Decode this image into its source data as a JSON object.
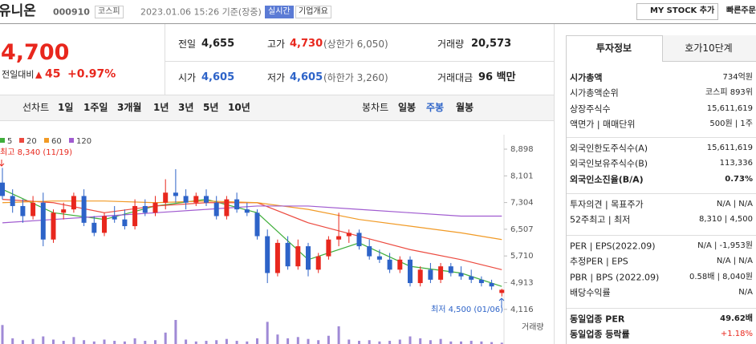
{
  "header": {
    "name": "유니온",
    "code": "000910",
    "market": "코스피",
    "datetime": "2023.01.06 15:26 기준(장중)",
    "realtime": "실시간",
    "overview": "기업개요",
    "mystock": "MY STOCK 추가",
    "quick_order": "빠른주문"
  },
  "price": {
    "current": "4,700",
    "change_label": "전일대비",
    "change": "45",
    "rate": "+0.97%"
  },
  "stats": {
    "prev_label": "전일",
    "prev": "4,655",
    "high_label": "고가",
    "high": "4,730",
    "upper_limit": "(상한가 6,050)",
    "volume_label": "거래량",
    "volume": "20,573",
    "open_label": "시가",
    "open": "4,605",
    "low_label": "저가",
    "low": "4,605",
    "lower_limit": "(하한가 3,260)",
    "amount_label": "거래대금",
    "amount": "96 백만"
  },
  "tabs": {
    "line_chart": "선차트",
    "line_periods": [
      "1일",
      "1주일",
      "3개월",
      "1년",
      "3년",
      "5년",
      "10년"
    ],
    "candle_chart": "봉차트",
    "candle_periods": [
      "일봉",
      "주봉",
      "월봉"
    ],
    "candle_selected": 1
  },
  "chart": {
    "type": "candlestick",
    "up_color": "#e8271d",
    "down_color": "#2d63c8",
    "ylim": [
      3900,
      9150
    ],
    "yticks": [
      {
        "value": 8898,
        "label": "8,898"
      },
      {
        "value": 8101,
        "label": "8,101"
      },
      {
        "value": 7304,
        "label": "7,304"
      },
      {
        "value": 6507,
        "label": "6,507"
      },
      {
        "value": 5710,
        "label": "5,710"
      },
      {
        "value": 4913,
        "label": "4,913"
      },
      {
        "value": 4116,
        "label": "4,116"
      }
    ],
    "high_note": "최고 8,340 (11/19)",
    "low_note": "최저 4,500 (01/06)",
    "volume_label": "거래량",
    "volume_color": "#a08ad6",
    "candles": [
      [
        7900,
        8340,
        7400,
        7500
      ],
      [
        7500,
        7700,
        7000,
        7200
      ],
      [
        7200,
        7400,
        6700,
        6900
      ],
      [
        6900,
        7500,
        6800,
        7300
      ],
      [
        7300,
        7600,
        6000,
        6200
      ],
      [
        6200,
        7100,
        6100,
        7000
      ],
      [
        7000,
        7300,
        6800,
        7100
      ],
      [
        7100,
        7600,
        7000,
        7500
      ],
      [
        7500,
        7700,
        6600,
        6700
      ],
      [
        6700,
        6900,
        6300,
        6400
      ],
      [
        6400,
        7000,
        6300,
        6900
      ],
      [
        6900,
        7200,
        6700,
        6800
      ],
      [
        6800,
        7100,
        6500,
        6600
      ],
      [
        6600,
        7400,
        6500,
        7200
      ],
      [
        7200,
        7400,
        6900,
        7000
      ],
      [
        7000,
        7500,
        6900,
        7300
      ],
      [
        7300,
        8000,
        7100,
        7600
      ],
      [
        7600,
        8300,
        7300,
        7500
      ],
      [
        7500,
        7700,
        7100,
        7300
      ],
      [
        7300,
        7600,
        7200,
        7500
      ],
      [
        7500,
        7700,
        7200,
        7300
      ],
      [
        7300,
        7500,
        6800,
        6900
      ],
      [
        6900,
        7500,
        6800,
        7400
      ],
      [
        7400,
        7600,
        7000,
        7100
      ],
      [
        7100,
        7300,
        6900,
        7000
      ],
      [
        7000,
        7100,
        6200,
        6300
      ],
      [
        6300,
        6500,
        4900,
        5200
      ],
      [
        5200,
        6200,
        5100,
        6100
      ],
      [
        6100,
        6300,
        5300,
        5400
      ],
      [
        5400,
        6200,
        5300,
        6000
      ],
      [
        6000,
        6100,
        5100,
        5300
      ],
      [
        5300,
        5800,
        5200,
        5700
      ],
      [
        5700,
        6300,
        5600,
        6200
      ],
      [
        6200,
        7000,
        6000,
        6300
      ],
      [
        6300,
        6500,
        6100,
        6400
      ],
      [
        6400,
        6500,
        5900,
        6000
      ],
      [
        6000,
        6200,
        5600,
        5700
      ],
      [
        5700,
        5900,
        5500,
        5600
      ],
      [
        5600,
        5800,
        5200,
        5300
      ],
      [
        5300,
        5700,
        5200,
        5600
      ],
      [
        5600,
        5700,
        4800,
        4900
      ],
      [
        4900,
        5400,
        4800,
        5300
      ],
      [
        5300,
        5500,
        4900,
        5000
      ],
      [
        5000,
        5500,
        4900,
        5400
      ],
      [
        5400,
        5500,
        5100,
        5200
      ],
      [
        5200,
        5400,
        5000,
        5100
      ],
      [
        5100,
        5300,
        4900,
        5000
      ],
      [
        5000,
        5100,
        4800,
        4900
      ],
      [
        4900,
        5000,
        4700,
        4800
      ],
      [
        4605,
        4730,
        4500,
        4700
      ]
    ],
    "volumes": [
      300000,
      90000,
      60000,
      80000,
      120000,
      70000,
      50000,
      110000,
      60000,
      40000,
      70000,
      50000,
      40000,
      90000,
      50000,
      60000,
      180000,
      380000,
      70000,
      40000,
      50000,
      60000,
      80000,
      50000,
      40000,
      90000,
      350000,
      150000,
      90000,
      110000,
      80000,
      60000,
      130000,
      280000,
      70000,
      50000,
      60000,
      40000,
      50000,
      70000,
      120000,
      90000,
      60000,
      80000,
      40000,
      40000,
      50000,
      40000,
      30000,
      20573
    ],
    "ma_x": [
      0,
      5,
      10,
      15,
      20,
      25,
      30,
      35,
      40,
      45,
      49
    ],
    "ma": [
      {
        "name": "5",
        "color": "#3fae3b",
        "values": [
          7700,
          7000,
          6800,
          7200,
          7400,
          7000,
          5600,
          6100,
          5400,
          5200,
          4800
        ]
      },
      {
        "name": "20",
        "color": "#ec4a3f",
        "values": [
          7400,
          7300,
          7000,
          7200,
          7300,
          7300,
          6700,
          6300,
          5900,
          5600,
          5300
        ]
      },
      {
        "name": "60",
        "color": "#f19a25",
        "values": [
          7300,
          7350,
          7350,
          7300,
          7350,
          7300,
          7100,
          6800,
          6600,
          6400,
          6200
        ]
      },
      {
        "name": "120",
        "color": "#a05bd0",
        "values": [
          6700,
          6800,
          6900,
          7000,
          7100,
          7200,
          7200,
          7100,
          7000,
          6900,
          6900
        ]
      }
    ]
  },
  "info": {
    "tabs": [
      "투자정보",
      "호가10단계"
    ],
    "groups": [
      [
        {
          "label": "시가총액",
          "value": "734억원"
        },
        {
          "label": "시가총액순위",
          "value": "코스피 893위"
        },
        {
          "label": "상장주식수",
          "value": "15,611,619"
        },
        {
          "label": "액면가 | 매매단위",
          "value": "500원 | 1주"
        }
      ],
      [
        {
          "label": "외국인한도주식수(A)",
          "value": "15,611,619"
        },
        {
          "label": "외국인보유주식수(B)",
          "value": "113,336"
        },
        {
          "label": "외국인소진율(B/A)",
          "value": "0.73%"
        }
      ],
      [
        {
          "label": "투자의견 | 목표주가",
          "value": "N/A | N/A"
        },
        {
          "label": "52주최고 | 최저",
          "value": "8,310 | 4,500"
        }
      ],
      [
        {
          "label": "PER | EPS(2022.09)",
          "value": "N/A | -1,953원"
        },
        {
          "label": "추정PER | EPS",
          "value": "N/A | N/A"
        },
        {
          "label": "PBR | BPS (2022.09)",
          "value": "0.58배 | 8,040원"
        },
        {
          "label": "배당수익률",
          "value": "N/A"
        }
      ],
      [
        {
          "label": "동일업종 PER",
          "value": "49.62배"
        },
        {
          "label": "동일업종 등락률",
          "value": "+1.18%"
        }
      ]
    ]
  }
}
